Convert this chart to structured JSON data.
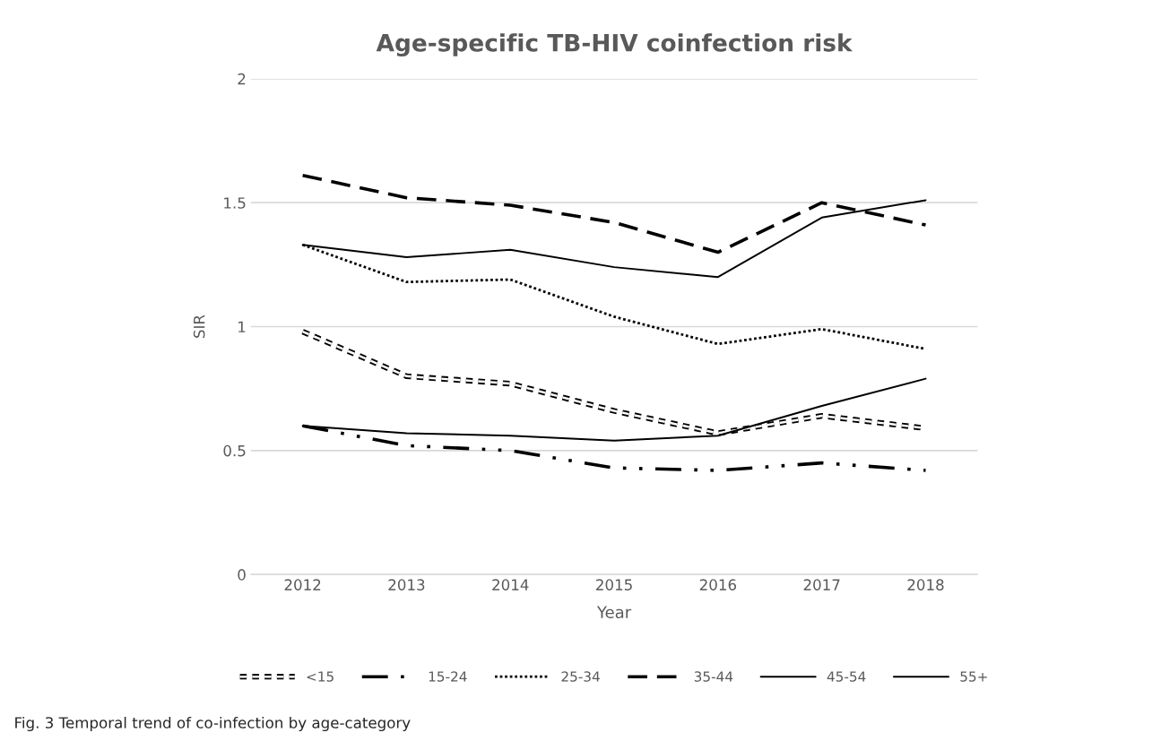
{
  "chart_data": {
    "type": "line",
    "title": "Age-specific TB-HIV coinfection risk",
    "xlabel": "Year",
    "ylabel": "SIR",
    "categories": [
      "2012",
      "2013",
      "2014",
      "2015",
      "2016",
      "2017",
      "2018"
    ],
    "series": [
      {
        "name": "<15",
        "color": "#000000",
        "line_style": "double_dashed",
        "values": [
          0.98,
          0.8,
          0.77,
          0.66,
          0.57,
          0.64,
          0.59
        ]
      },
      {
        "name": "15-24",
        "color": "#000000",
        "line_style": "dashdot",
        "values": [
          0.6,
          0.52,
          0.5,
          0.43,
          0.42,
          0.45,
          0.42
        ]
      },
      {
        "name": "25-34",
        "color": "#000000",
        "line_style": "dotted",
        "values": [
          1.33,
          1.18,
          1.19,
          1.04,
          0.93,
          0.99,
          0.91
        ]
      },
      {
        "name": "35-44",
        "color": "#000000",
        "line_style": "dashed",
        "values": [
          1.61,
          1.52,
          1.49,
          1.42,
          1.3,
          1.5,
          1.41
        ]
      },
      {
        "name": "45-54",
        "color": "#000000",
        "line_style": "solid",
        "values": [
          1.33,
          1.28,
          1.31,
          1.24,
          1.2,
          1.44,
          1.51
        ]
      },
      {
        "name": "55+",
        "color": "#000000",
        "line_style": "solid",
        "values": [
          0.6,
          0.57,
          0.56,
          0.54,
          0.56,
          0.68,
          0.79
        ]
      }
    ],
    "ylim": [
      0,
      2
    ],
    "yticks": [
      0,
      0.5,
      1,
      1.5,
      2
    ],
    "grid": "y",
    "legend": "bottom",
    "annotations": [
      "Fig. 3 Temporal trend of co-infection by age-category"
    ]
  }
}
